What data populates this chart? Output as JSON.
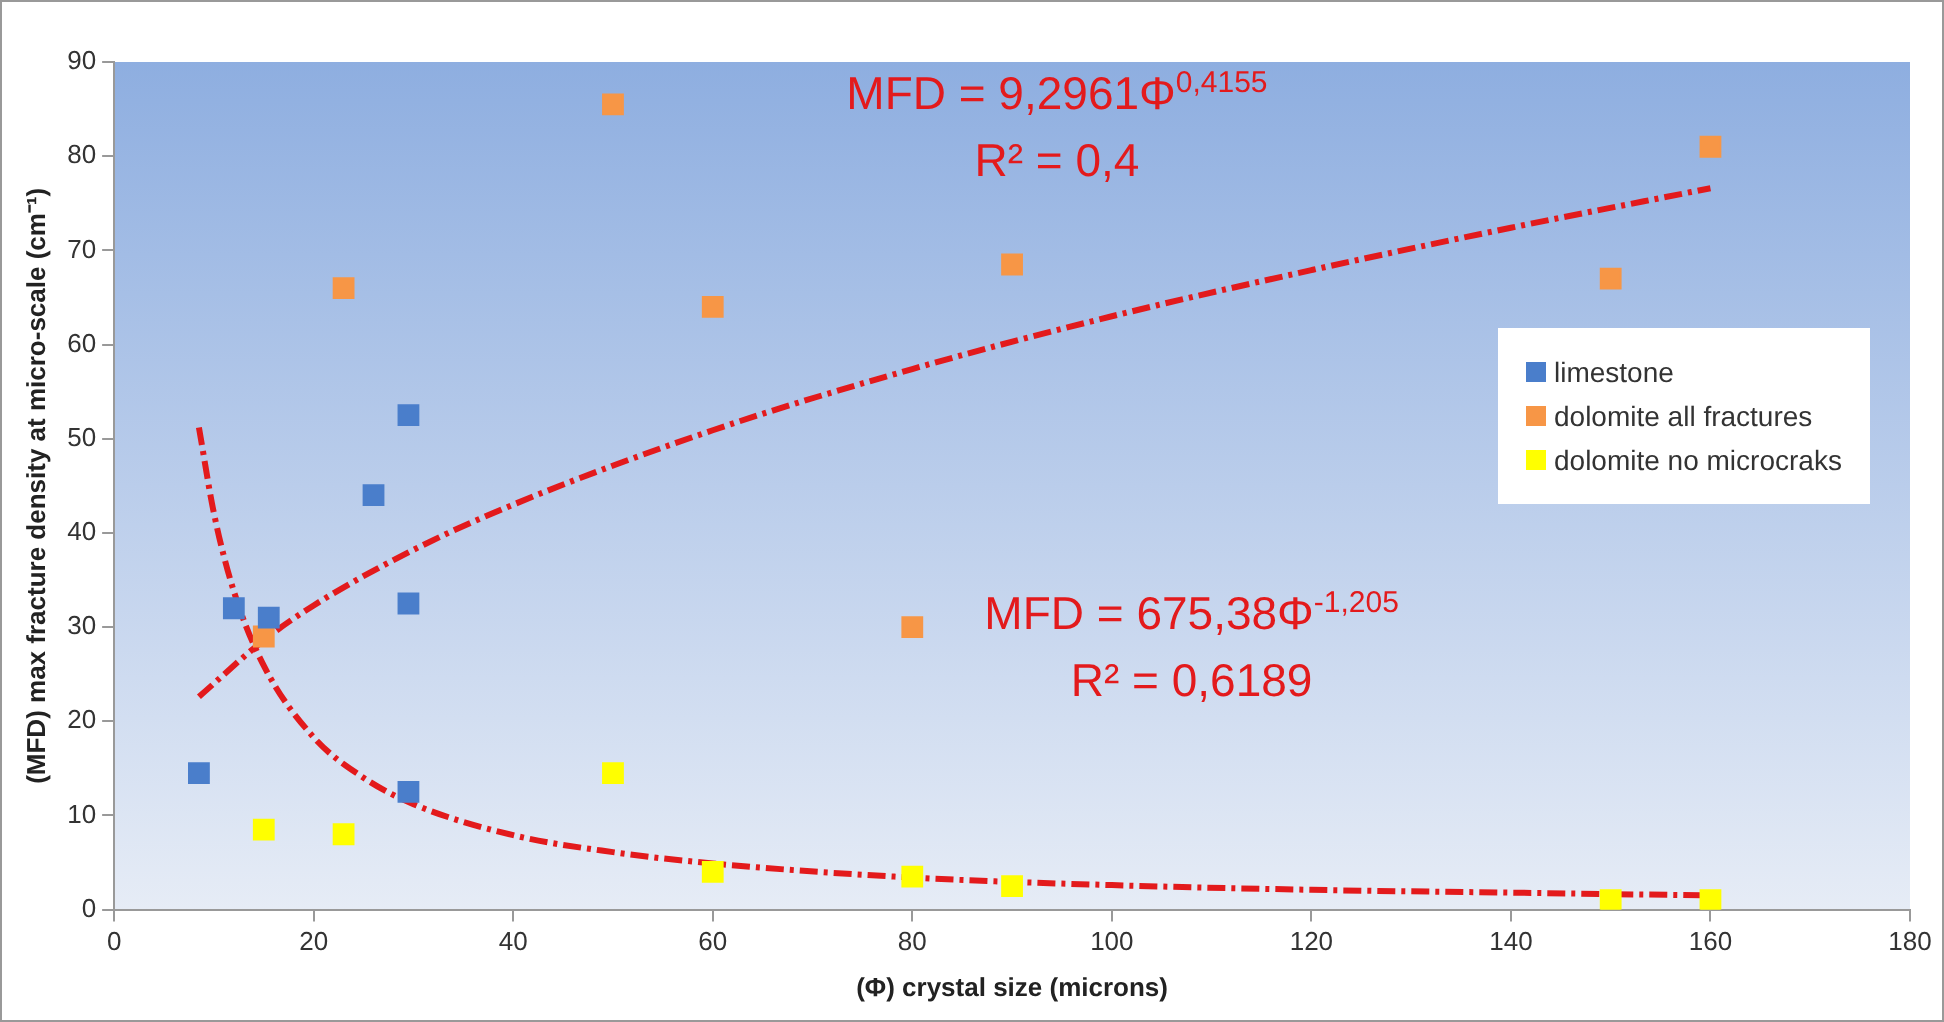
{
  "chart_data": {
    "type": "scatter",
    "xlabel": "(Φ) crystal size (microns)",
    "ylabel": "(MFD) max fracture density at micro-scale (cm⁻¹)",
    "xlim": [
      0,
      180
    ],
    "xticks": [
      0,
      20,
      40,
      60,
      80,
      100,
      120,
      140,
      160,
      180
    ],
    "ylim": [
      0,
      90
    ],
    "yticks": [
      0,
      10,
      20,
      30,
      40,
      50,
      60,
      70,
      80,
      90
    ],
    "grid": false,
    "legend": "right",
    "marker": "square",
    "series": [
      {
        "name": "limestone",
        "color": "#4a7ecb",
        "x": [
          8.5,
          12,
          15.5,
          26,
          29.5,
          29.5,
          29.5
        ],
        "values": [
          14.5,
          32,
          31,
          44,
          52.5,
          32.5,
          12.5
        ]
      },
      {
        "name": "dolomite all fractures",
        "color": "#f79646",
        "x": [
          15,
          23,
          50,
          60,
          80,
          90,
          150,
          160
        ],
        "values": [
          29,
          66,
          85.5,
          64,
          30,
          68.5,
          67,
          81
        ]
      },
      {
        "name": "dolomite no microcraks",
        "color": "#ffff00",
        "x": [
          15,
          23,
          50,
          60,
          80,
          90,
          150,
          160
        ],
        "values": [
          8.5,
          8,
          14.5,
          4,
          3.5,
          2.5,
          1,
          1
        ]
      },
      {
        "type": "line",
        "color": "#e31a1c",
        "line_style": "dashed",
        "marker": "none",
        "x": [
          8.5,
          15,
          20,
          30,
          40,
          60,
          80,
          100,
          120,
          140,
          160
        ],
        "values": [
          22.6,
          28.6,
          32.3,
          38.2,
          43,
          50.9,
          57.4,
          63,
          67.9,
          72.4,
          76.6
        ]
      },
      {
        "type": "line",
        "color": "#e31a1c",
        "line_style": "dashed",
        "marker": "none",
        "x": [
          8.5,
          10,
          12,
          15,
          20,
          25,
          30,
          40,
          50,
          60,
          80,
          100,
          120,
          140,
          160
        ],
        "values": [
          51.2,
          42.1,
          33.8,
          25.9,
          18.3,
          14,
          11.2,
          7.9,
          6.1,
          4.9,
          3.4,
          2.6,
          2.1,
          1.8,
          1.5
        ]
      }
    ],
    "annotations": [
      "MFD = 9,2961Φ$^{0,4155}$",
      "R² = 0,4",
      "MFD = 675,38Φ$^{-1,205}$",
      "R² = 0,6189"
    ]
  }
}
